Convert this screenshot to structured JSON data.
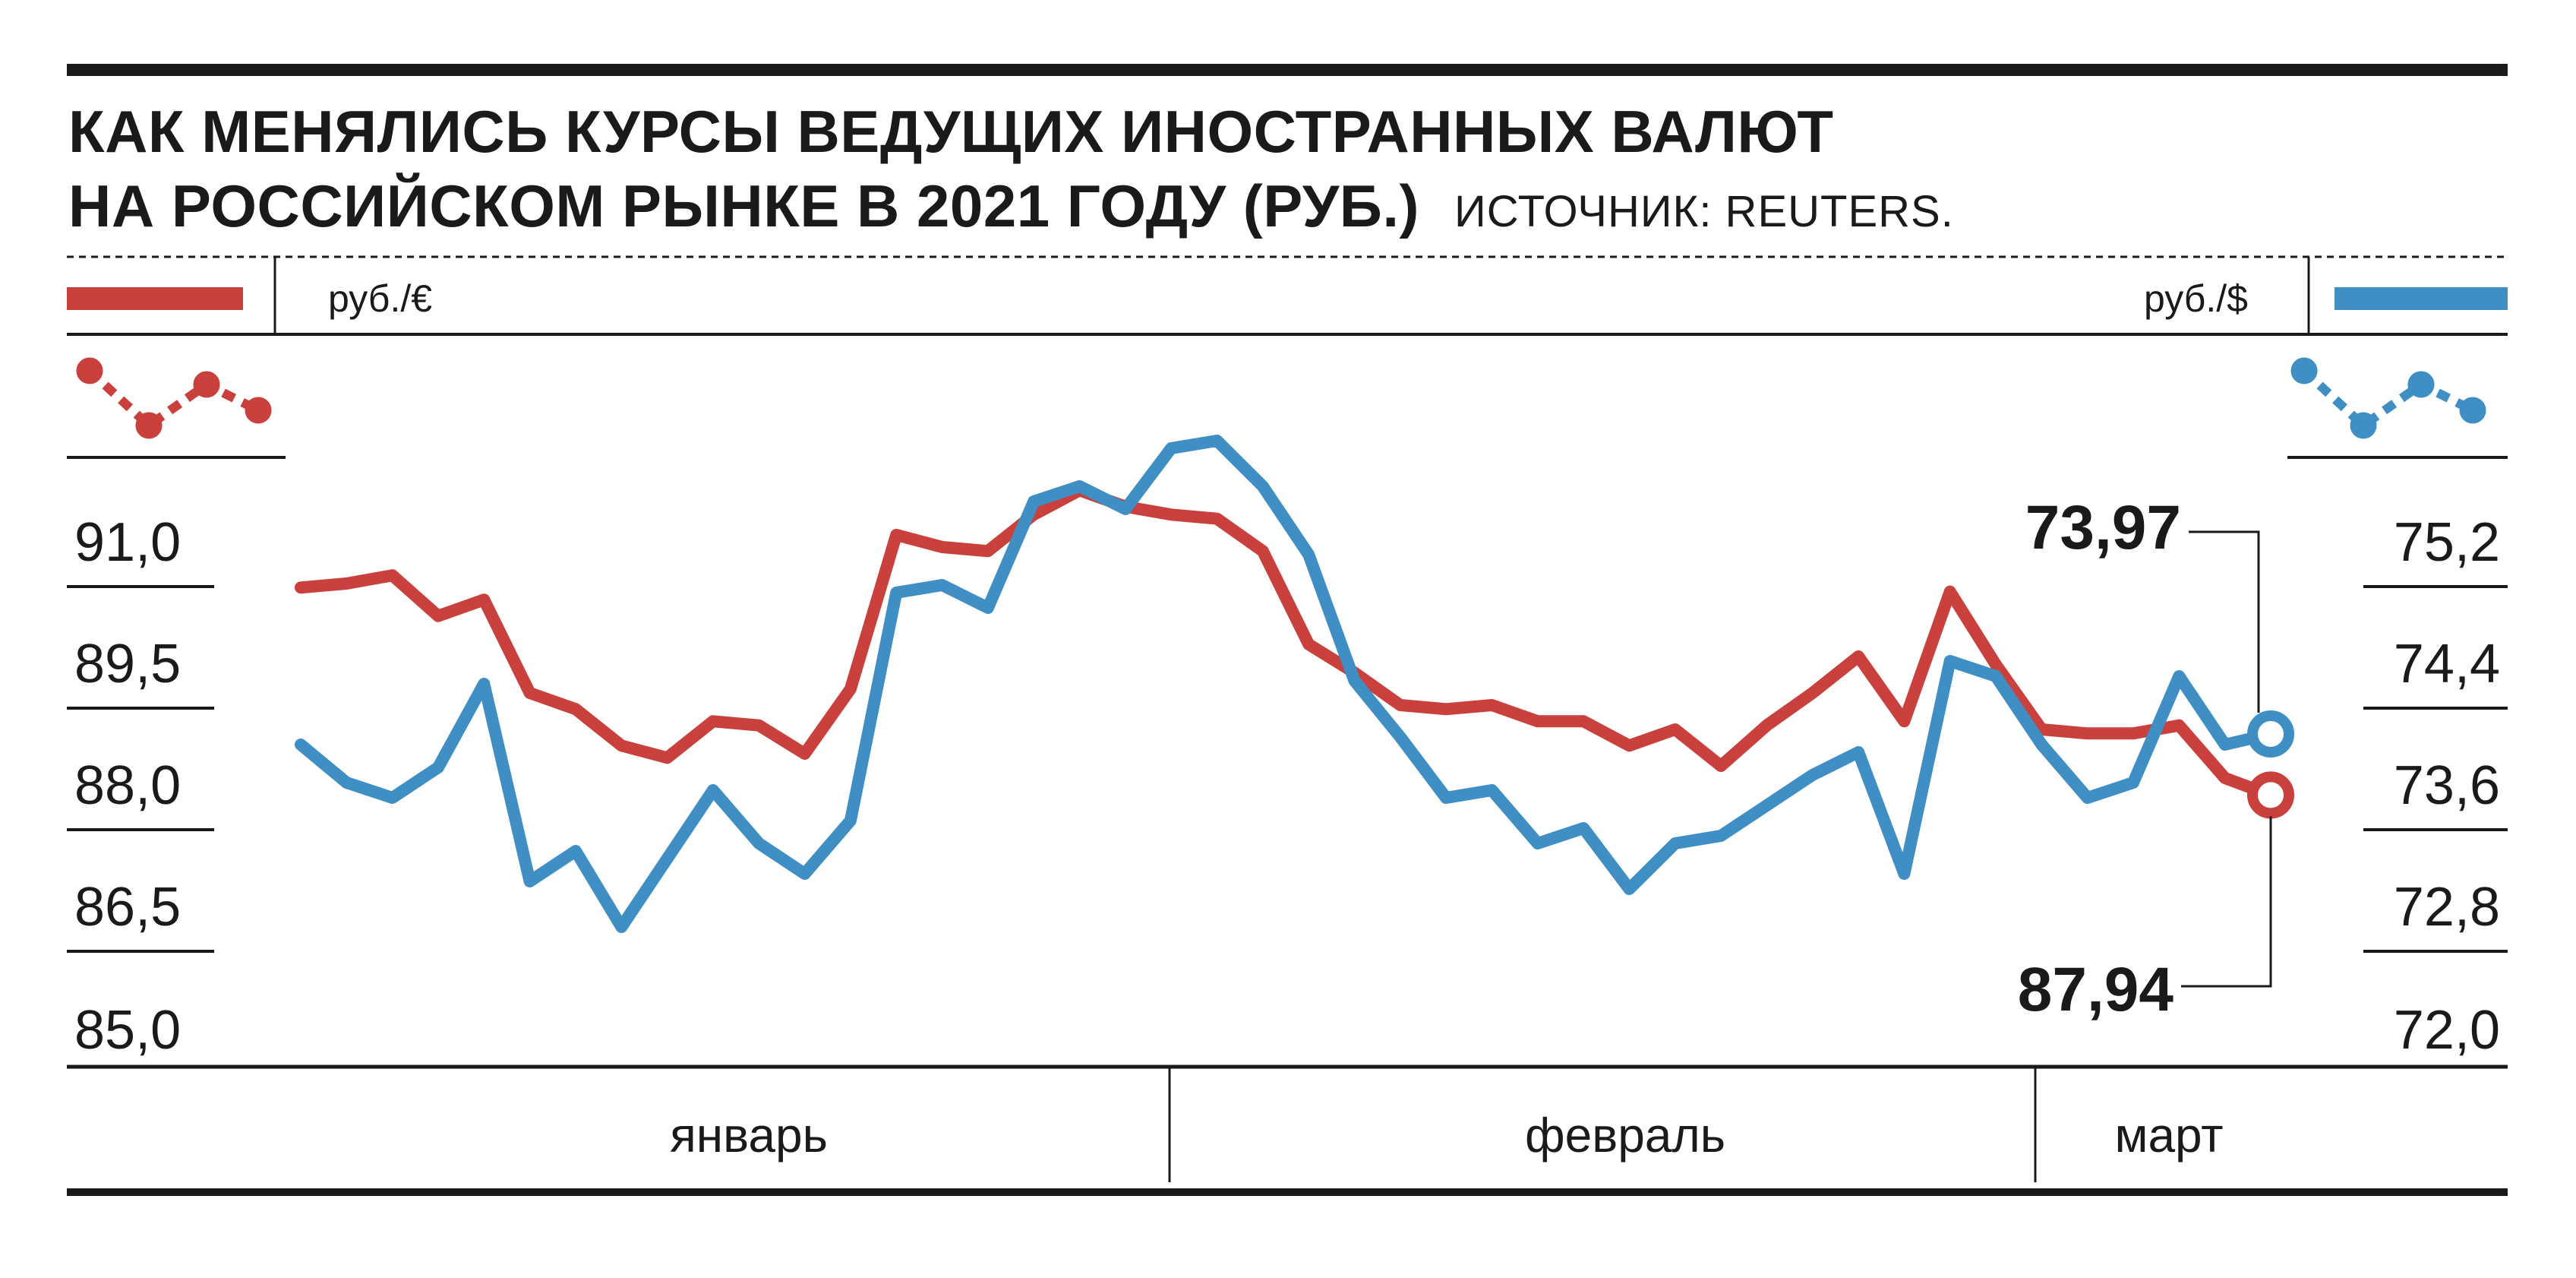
{
  "title": {
    "line1": "КАК МЕНЯЛИСЬ КУРСЫ ВЕДУЩИХ ИНОСТРАННЫХ ВАЛЮТ",
    "line2": "НА РОССИЙСКОМ РЫНКЕ В 2021 ГОДУ (РУБ.)",
    "source": "ИСТОЧНИК: REUTERS."
  },
  "colors": {
    "euro": "#c9403d",
    "dollar": "#3f8fc4",
    "ink": "#1a1a1a"
  },
  "chart_data": {
    "type": "line",
    "months": [
      "январь",
      "февраль",
      "март"
    ],
    "left_axis": {
      "unit": "руб./€",
      "ticks": [
        "91,0",
        "89,5",
        "88,0",
        "86,5",
        "85,0"
      ],
      "range": [
        85.0,
        91.0
      ]
    },
    "right_axis": {
      "unit": "руб./$",
      "ticks": [
        "75,2",
        "74,4",
        "73,6",
        "72,8",
        "72,0"
      ],
      "range": [
        72.0,
        75.2
      ]
    },
    "series": [
      {
        "key": "euro",
        "axis": "left",
        "values": [
          90.5,
          90.55,
          90.65,
          90.15,
          90.35,
          89.2,
          89.0,
          88.55,
          88.4,
          88.85,
          88.8,
          88.45,
          89.25,
          91.15,
          91.0,
          90.95,
          91.4,
          91.7,
          91.5,
          91.4,
          91.35,
          90.95,
          89.8,
          89.45,
          89.05,
          89.0,
          89.05,
          88.85,
          88.85,
          88.55,
          88.75,
          88.3,
          88.8,
          89.2,
          89.65,
          88.85,
          90.45,
          89.55,
          88.75,
          88.7,
          88.7,
          88.8,
          88.15,
          87.94
        ],
        "last_label": "87,94"
      },
      {
        "key": "dollar",
        "axis": "right",
        "values": [
          73.9,
          73.65,
          73.55,
          73.75,
          74.3,
          73.0,
          73.2,
          72.7,
          73.15,
          73.6,
          73.25,
          73.05,
          73.4,
          74.9,
          74.95,
          74.8,
          75.5,
          75.6,
          75.45,
          75.85,
          75.9,
          75.6,
          75.15,
          74.32,
          73.95,
          73.55,
          73.6,
          73.25,
          73.35,
          72.95,
          73.25,
          73.3,
          73.5,
          73.7,
          73.85,
          73.05,
          74.45,
          74.35,
          73.9,
          73.55,
          73.65,
          74.35,
          73.9,
          73.97
        ],
        "last_label": "73,97"
      }
    ]
  }
}
